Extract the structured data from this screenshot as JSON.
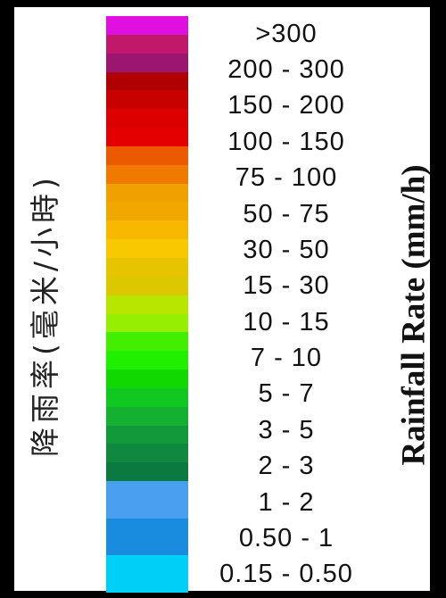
{
  "legend": {
    "label_zh": "降雨率(毫米/小時)",
    "label_en": "Rainfall Rate (mm/h)",
    "bands": [
      {
        "range": ">300",
        "colors": [
          "#e011e0"
        ]
      },
      {
        "range": "200 - 300",
        "colors": [
          "#c0186a",
          "#9c1570"
        ]
      },
      {
        "range": "150 - 200",
        "colors": [
          "#b00000",
          "#c80000"
        ]
      },
      {
        "range": "100 - 150",
        "colors": [
          "#dc0000",
          "#e40000"
        ]
      },
      {
        "range": "75 - 100",
        "colors": [
          "#ec5a00",
          "#f07a00"
        ]
      },
      {
        "range": "50 - 75",
        "colors": [
          "#f0a000",
          "#f0a800"
        ]
      },
      {
        "range": "30 - 50",
        "colors": [
          "#f8b800",
          "#f8c800"
        ]
      },
      {
        "range": "15 - 30",
        "colors": [
          "#e6c400",
          "#dcc800"
        ]
      },
      {
        "range": "10 - 15",
        "colors": [
          "#b8e600",
          "#96ee00"
        ]
      },
      {
        "range": "7 - 10",
        "colors": [
          "#44ee00",
          "#1ef000"
        ]
      },
      {
        "range": "5 - 7",
        "colors": [
          "#10d800",
          "#10c820"
        ]
      },
      {
        "range": "3 - 5",
        "colors": [
          "#14b030",
          "#129a3a"
        ]
      },
      {
        "range": "2 - 3",
        "colors": [
          "#108840",
          "#0a7a40"
        ]
      },
      {
        "range": "1 - 2",
        "colors": [
          "#4aa0f0",
          "#4aa0f0"
        ]
      },
      {
        "range": "0.50 - 1",
        "colors": [
          "#1a8ce0",
          "#1a8ce0"
        ]
      },
      {
        "range": "0.15 - 0.50",
        "colors": [
          "#00d0f8",
          "#00d0f8"
        ]
      }
    ]
  }
}
